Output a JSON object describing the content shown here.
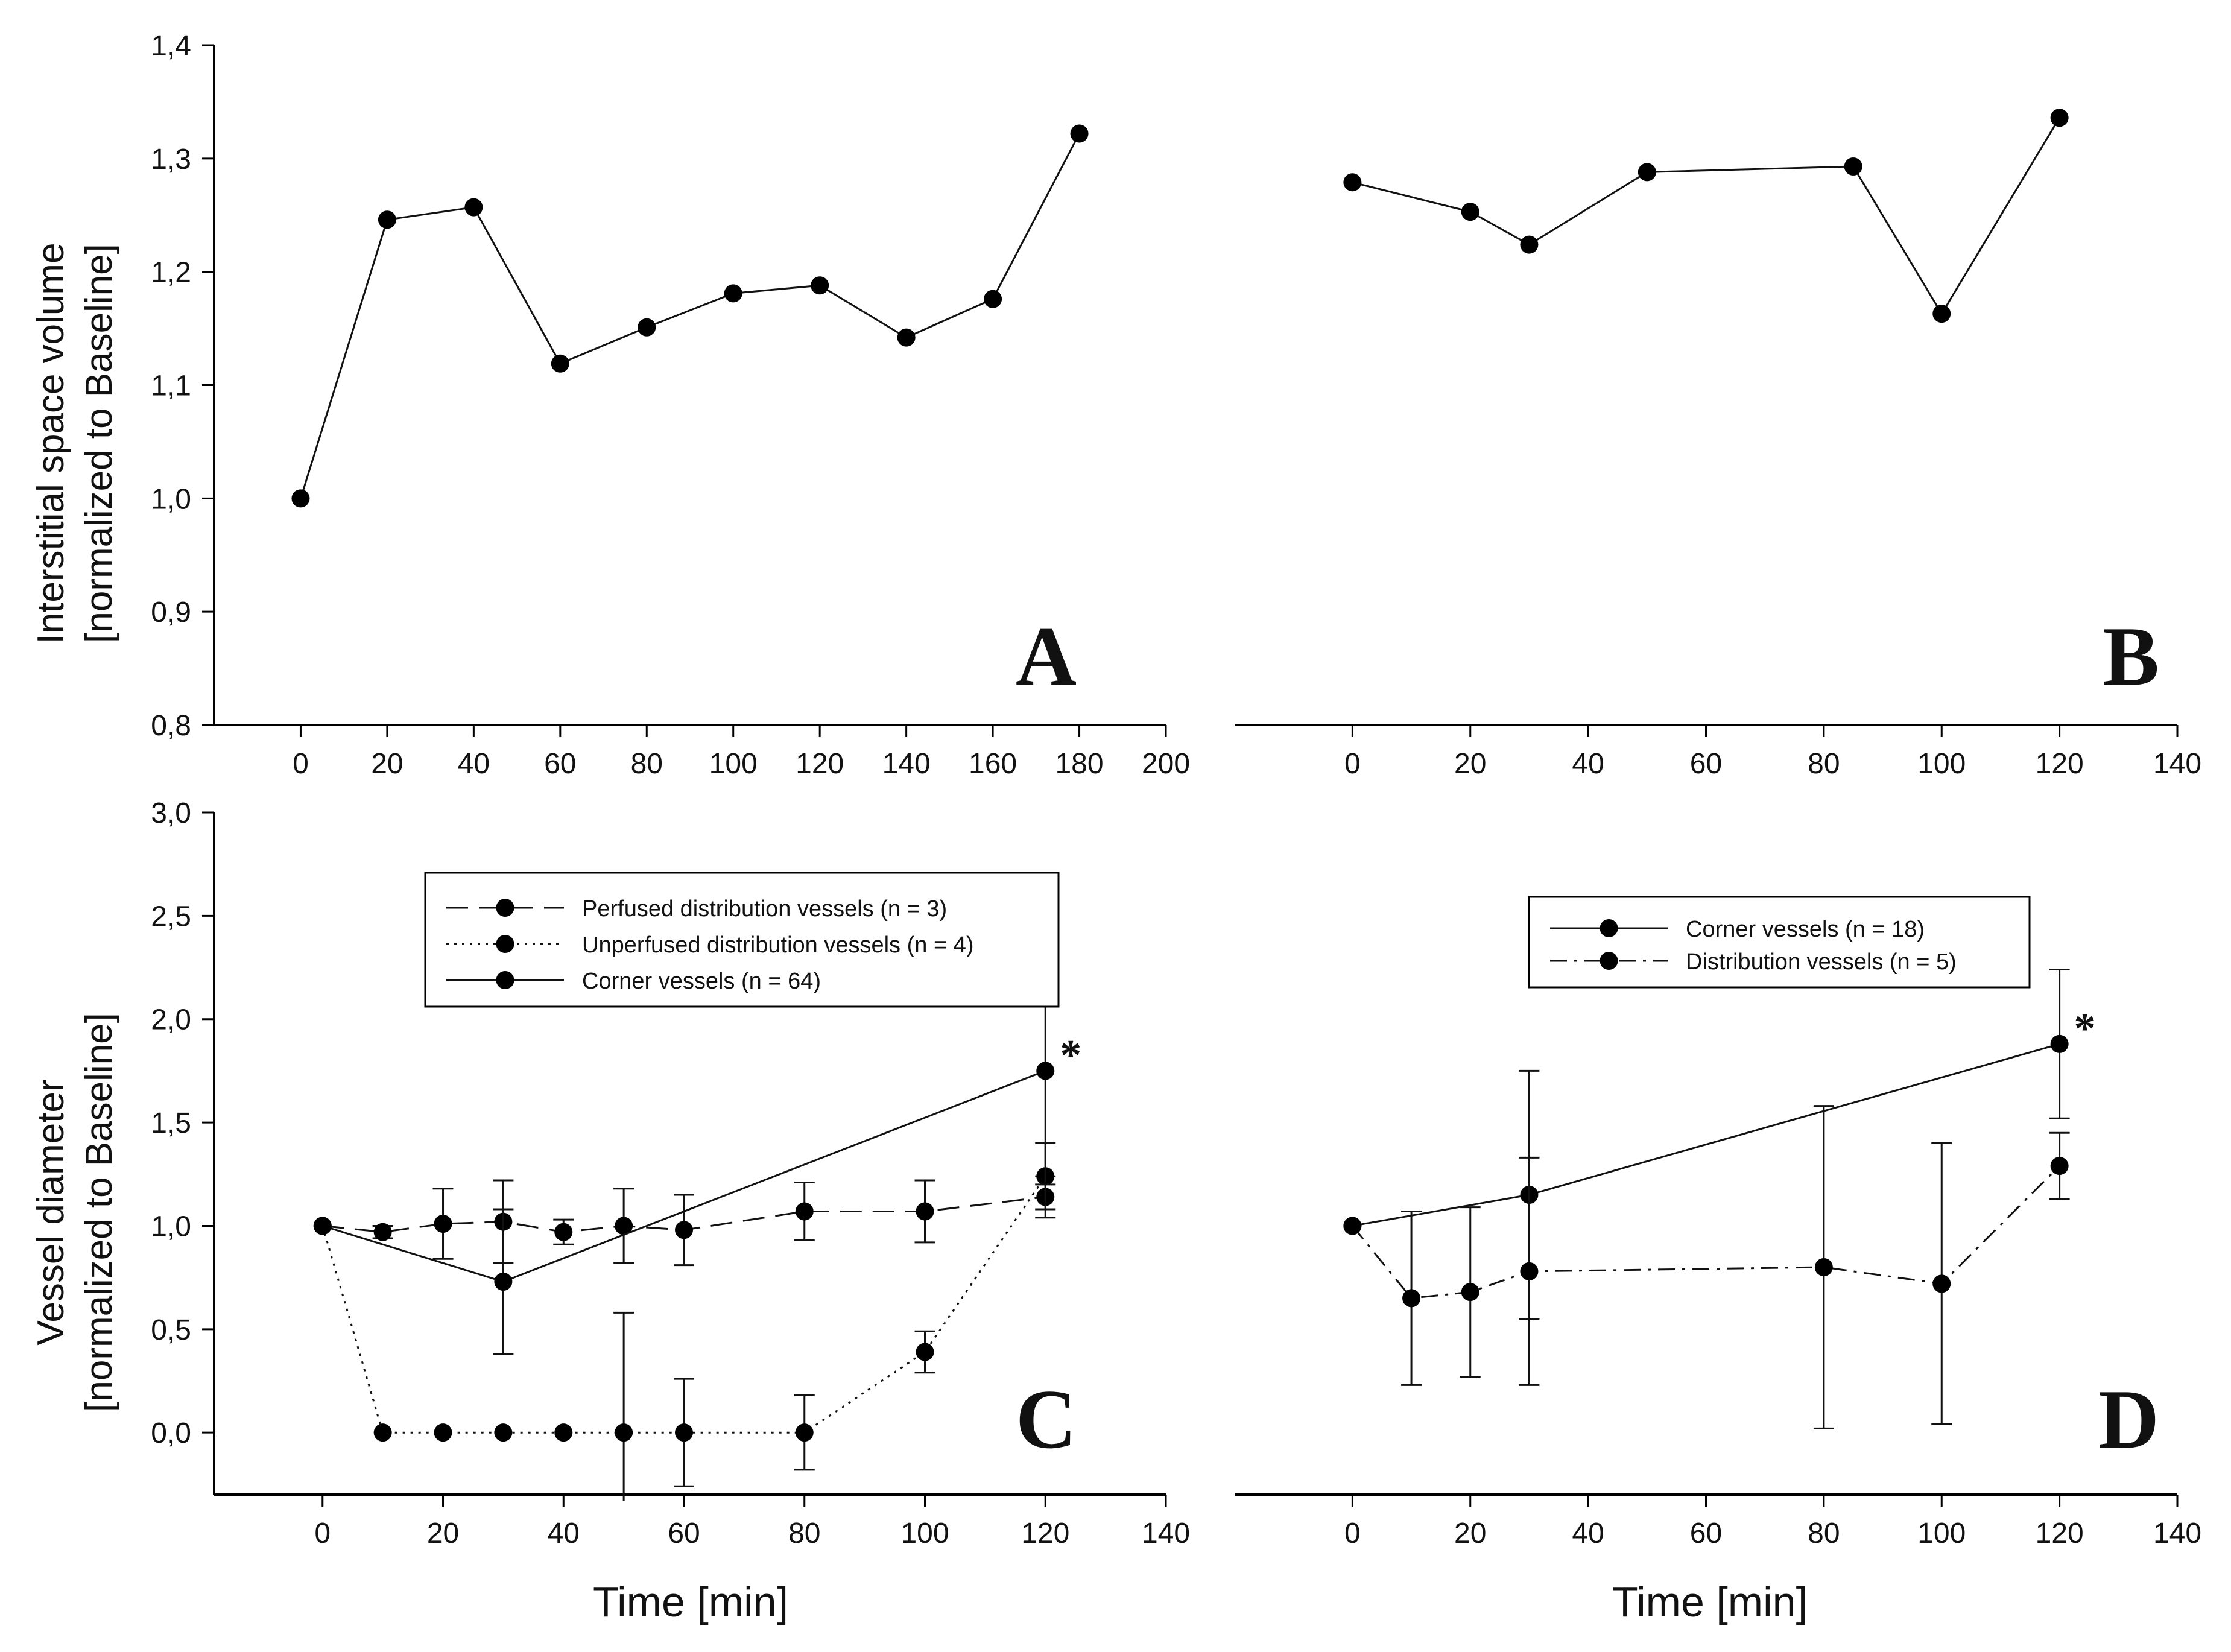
{
  "ylabels": {
    "top": [
      "Interstitial space volume",
      "[normalized to Baseline]"
    ],
    "bottom": [
      "Vessel diameter",
      "[normalized to Baseline]"
    ]
  },
  "xlabel": "Time [min]",
  "chart_data": [
    {
      "panel": "A",
      "type": "line",
      "panel_letter": "A",
      "xlim": [
        -20,
        200
      ],
      "ylim": [
        0.8,
        1.4
      ],
      "xticks": [
        "0",
        "20",
        "40",
        "60",
        "80",
        "100",
        "120",
        "140",
        "160",
        "180",
        "200"
      ],
      "yticks": [
        "0,8",
        "0,9",
        "1,0",
        "1,1",
        "1,2",
        "1,3",
        "1,4"
      ],
      "xlabel": "",
      "ylabel": "Interstitial space volume [normalized to Baseline]",
      "series": [
        {
          "style": "solid",
          "x": [
            0,
            20,
            40,
            60,
            80,
            100,
            120,
            140,
            160,
            180
          ],
          "y": [
            1.0,
            1.246,
            1.257,
            1.119,
            1.151,
            1.181,
            1.188,
            1.142,
            1.176,
            1.322
          ]
        }
      ]
    },
    {
      "panel": "B",
      "type": "line",
      "panel_letter": "B",
      "xlim": [
        -20,
        140
      ],
      "ylim": [
        0.8,
        1.4
      ],
      "xticks": [
        "0",
        "20",
        "40",
        "60",
        "80",
        "100",
        "120",
        "140"
      ],
      "yticks": [],
      "xlabel": "",
      "ylabel": "",
      "series": [
        {
          "style": "solid",
          "x": [
            0,
            20,
            30,
            50,
            85,
            100,
            120
          ],
          "y": [
            1.279,
            1.253,
            1.224,
            1.288,
            1.293,
            1.163,
            1.336
          ]
        }
      ]
    },
    {
      "panel": "C",
      "type": "line",
      "panel_letter": "C",
      "xlim": [
        -18,
        140
      ],
      "ylim": [
        -0.3,
        3.0
      ],
      "xticks": [
        "0",
        "20",
        "40",
        "60",
        "80",
        "100",
        "120",
        "140"
      ],
      "yticks": [
        "0,0",
        "0,5",
        "1,0",
        "1,5",
        "2,0",
        "2,5",
        "3,0"
      ],
      "xlabel": "Time [min]",
      "ylabel": "Vessel diameter [normalized to Baseline]",
      "legend": {
        "position": "top-center"
      },
      "annotations": [
        {
          "text": "*",
          "x": 120,
          "y": 1.75
        }
      ],
      "series": [
        {
          "name": "Perfused distribution vessels (n = 3)",
          "style": "dashed",
          "x": [
            0,
            10,
            20,
            30,
            40,
            50,
            60,
            80,
            100,
            120
          ],
          "y": [
            1.0,
            0.97,
            1.01,
            1.02,
            0.97,
            1.0,
            0.98,
            1.07,
            1.07,
            1.14
          ],
          "err": [
            0,
            0.03,
            0.17,
            0.2,
            0.06,
            0.18,
            0.17,
            0.14,
            0.15,
            0.1
          ]
        },
        {
          "name": "Unperfused distribution vessels (n = 4)",
          "style": "dotted",
          "x": [
            0,
            10,
            20,
            30,
            40,
            50,
            60,
            80,
            100,
            120
          ],
          "y": [
            1.0,
            0.0,
            0.0,
            0.0,
            0.0,
            0.0,
            0.0,
            0.0,
            0.39,
            1.24
          ],
          "err": [
            0,
            0,
            0,
            0,
            0,
            0.58,
            0.26,
            0.18,
            0.1,
            0.16
          ]
        },
        {
          "name": "Corner vessels (n = 64)",
          "style": "solid",
          "x": [
            0,
            30,
            120
          ],
          "y": [
            1.0,
            0.73,
            1.75
          ],
          "err": [
            0,
            0.35,
            0.55
          ]
        }
      ]
    },
    {
      "panel": "D",
      "type": "line",
      "panel_letter": "D",
      "xlim": [
        -20,
        140
      ],
      "ylim": [
        -0.3,
        3.0
      ],
      "xticks": [
        "0",
        "20",
        "40",
        "60",
        "80",
        "100",
        "120",
        "140"
      ],
      "yticks": [],
      "xlabel": "Time [min]",
      "ylabel": "",
      "legend": {
        "position": "top-center"
      },
      "annotations": [
        {
          "text": "*",
          "x": 120,
          "y": 1.88
        }
      ],
      "series": [
        {
          "name": "Corner vessels (n = 18)",
          "style": "solid",
          "x": [
            0,
            30,
            120
          ],
          "y": [
            1.0,
            1.15,
            1.88
          ],
          "err": [
            0,
            0.6,
            0.36
          ]
        },
        {
          "name": "Distribution vessels (n = 5)",
          "style": "dashdot",
          "x": [
            0,
            10,
            20,
            30,
            80,
            100,
            120
          ],
          "y": [
            1.0,
            0.65,
            0.68,
            0.78,
            0.8,
            0.72,
            1.29
          ],
          "err": [
            0,
            0.42,
            0.41,
            0.55,
            0.78,
            0.68,
            0.16
          ]
        }
      ]
    }
  ]
}
